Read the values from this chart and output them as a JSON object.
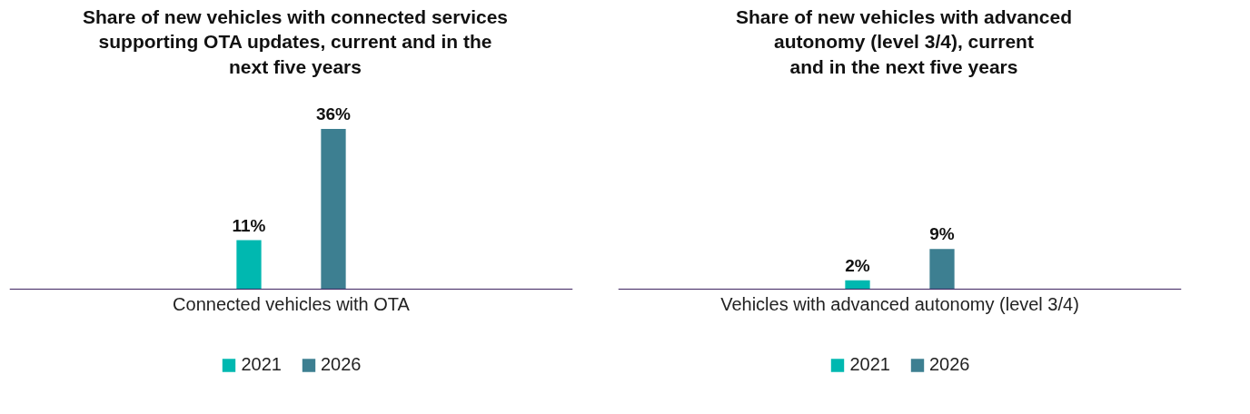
{
  "chart_data": [
    {
      "type": "bar",
      "title": "Share of new vehicles with connected services\nsupporting OTA updates, current and in the\nnext five years",
      "categories": [
        "Connected vehicles with OTA"
      ],
      "legend": "bottom",
      "series": [
        {
          "name": "2021",
          "color": "#00b8b0",
          "values": [
            11
          ],
          "value_labels": [
            "11%"
          ]
        },
        {
          "name": "2026",
          "color": "#3d7f91",
          "values": [
            36
          ],
          "value_labels": [
            "36%"
          ]
        }
      ]
    },
    {
      "type": "bar",
      "title": "Share of new vehicles with advanced\nautonomy (level 3/4), current\nand in the next five years",
      "categories": [
        "Vehicles with advanced autonomy (level 3/4)"
      ],
      "legend": "bottom",
      "series": [
        {
          "name": "2021",
          "color": "#00b8b0",
          "values": [
            2
          ],
          "value_labels": [
            "2%"
          ]
        },
        {
          "name": "2026",
          "color": "#3d7f91",
          "values": [
            9
          ],
          "value_labels": [
            "9%"
          ]
        }
      ]
    }
  ]
}
